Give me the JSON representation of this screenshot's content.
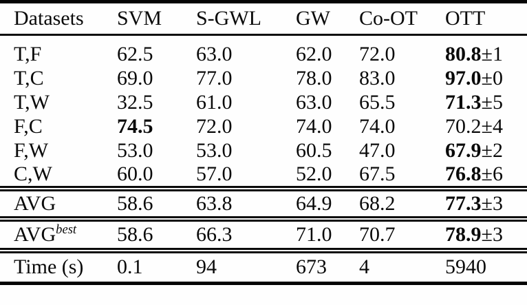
{
  "page": {
    "background_color": "#fefefe",
    "text_color": "#0a0a0a",
    "rule_color": "#050505"
  },
  "table": {
    "columns": {
      "datasets": "Datasets",
      "svm": "SVM",
      "sgwl": "S-GWL",
      "gw": "GW",
      "coot": "Co-OT",
      "ott": "OTT"
    },
    "dataset_rows": [
      {
        "dataset": "T,F",
        "svm": "62.5",
        "sgwl": "63.0",
        "gw": "62.0",
        "coot": "72.0",
        "ott": "80.8",
        "ott_pm": "±1",
        "ott_bold": true
      },
      {
        "dataset": "T,C",
        "svm": "69.0",
        "sgwl": "77.0",
        "gw": "78.0",
        "coot": "83.0",
        "ott": "97.0",
        "ott_pm": "±0",
        "ott_bold": true
      },
      {
        "dataset": "T,W",
        "svm": "32.5",
        "sgwl": "61.0",
        "gw": "63.0",
        "coot": "65.5",
        "ott": "71.3",
        "ott_pm": "±5",
        "ott_bold": true
      },
      {
        "dataset": "F,C",
        "svm": "74.5",
        "svm_bold": true,
        "sgwl": "72.0",
        "gw": "74.0",
        "coot": "74.0",
        "ott": "70.2",
        "ott_pm": "±4",
        "ott_bold": false
      },
      {
        "dataset": "F,W",
        "svm": "53.0",
        "sgwl": "53.0",
        "gw": "60.5",
        "coot": "47.0",
        "ott": "67.9",
        "ott_pm": "±2",
        "ott_bold": true
      },
      {
        "dataset": "C,W",
        "svm": "60.0",
        "sgwl": "57.0",
        "gw": "52.0",
        "coot": "67.5",
        "ott": "76.8",
        "ott_pm": "±6",
        "ott_bold": true
      }
    ],
    "avg_row": {
      "label": "AVG",
      "svm": "58.6",
      "sgwl": "63.8",
      "gw": "64.9",
      "coot": "68.2",
      "ott": "77.3",
      "ott_pm": "±3",
      "ott_bold": true
    },
    "avgbest_row": {
      "label": "AVG",
      "sup": "best",
      "svm": "58.6",
      "sgwl": "66.3",
      "gw": "71.0",
      "coot": "70.7",
      "ott": "78.9",
      "ott_pm": "±3",
      "ott_bold": true
    },
    "time_row": {
      "label": "Time (s)",
      "svm": "0.1",
      "sgwl": "94",
      "gw": "673",
      "coot": "4",
      "ott": "5940"
    }
  }
}
